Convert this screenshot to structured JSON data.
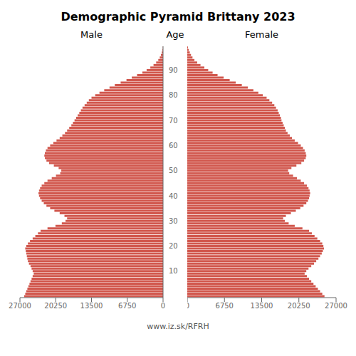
{
  "chart_data": {
    "type": "bar",
    "orientation": "horizontal",
    "title": "Demographic Pyramid Brittany 2023",
    "ylabel": "Age",
    "annotations": [
      "www.iz.sk/RFRH"
    ],
    "color": "#d1574d",
    "grid": false,
    "categories": [
      null,
      null,
      null,
      null,
      null,
      null,
      null,
      null,
      null,
      null,
      "10",
      null,
      null,
      null,
      null,
      null,
      null,
      null,
      null,
      null,
      "20",
      null,
      null,
      null,
      null,
      null,
      null,
      null,
      null,
      null,
      "30",
      null,
      null,
      null,
      null,
      null,
      null,
      null,
      null,
      null,
      "40",
      null,
      null,
      null,
      null,
      null,
      null,
      null,
      null,
      null,
      "50",
      null,
      null,
      null,
      null,
      null,
      null,
      null,
      null,
      null,
      "60",
      null,
      null,
      null,
      null,
      null,
      null,
      null,
      null,
      null,
      "70",
      null,
      null,
      null,
      null,
      null,
      null,
      null,
      null,
      null,
      "80",
      null,
      null,
      null,
      null,
      null,
      null,
      null,
      null,
      null,
      "90",
      null,
      null,
      null,
      null,
      null,
      null,
      null,
      null,
      null
    ],
    "xlim": [
      0,
      27000
    ],
    "xticks": [
      0,
      6750,
      13500,
      20250,
      27000
    ],
    "series": [
      {
        "name": "Male",
        "values": [
          26200,
          26000,
          25800,
          25600,
          25400,
          25200,
          25000,
          24800,
          24600,
          24400,
          24600,
          24800,
          25000,
          25300,
          25500,
          25600,
          25700,
          25800,
          25900,
          26000,
          25800,
          25500,
          25100,
          24600,
          24100,
          23600,
          23100,
          21800,
          20300,
          19100,
          18400,
          18100,
          18600,
          19500,
          20500,
          21300,
          22000,
          22500,
          22900,
          23200,
          23400,
          23500,
          23400,
          23200,
          22900,
          22400,
          21800,
          21000,
          20200,
          19400,
          19200,
          19700,
          20600,
          21500,
          22000,
          22300,
          22400,
          22300,
          22100,
          21800,
          21300,
          20700,
          20100,
          19500,
          19000,
          18500,
          18100,
          17700,
          17300,
          17000,
          16700,
          16400,
          16100,
          15800,
          15500,
          15200,
          14800,
          14400,
          14000,
          13500,
          12800,
          12000,
          11100,
          10100,
          9100,
          8000,
          6900,
          5900,
          4900,
          3900,
          3100,
          2400,
          1800,
          1300,
          900,
          620,
          400,
          230,
          110,
          40
        ]
      },
      {
        "name": "Female",
        "values": [
          24900,
          24500,
          24100,
          23700,
          23300,
          22900,
          22500,
          22100,
          21700,
          21300,
          21600,
          22000,
          22500,
          23000,
          23400,
          23800,
          24100,
          24400,
          24600,
          24800,
          24700,
          24500,
          24100,
          23600,
          23100,
          22600,
          22100,
          20900,
          19500,
          18400,
          17700,
          17400,
          17900,
          18800,
          19700,
          20500,
          21100,
          21600,
          21900,
          22100,
          22200,
          22300,
          22200,
          22000,
          21700,
          21200,
          20600,
          19900,
          19200,
          18500,
          18300,
          18900,
          19800,
          20700,
          21200,
          21500,
          21600,
          21500,
          21300,
          21000,
          20600,
          20100,
          19500,
          19000,
          18600,
          18200,
          17900,
          17700,
          17500,
          17300,
          17100,
          17000,
          16800,
          16600,
          16400,
          16100,
          15800,
          15400,
          14900,
          14400,
          13700,
          12900,
          12000,
          11000,
          9900,
          8800,
          7700,
          6600,
          5500,
          4600,
          3800,
          3100,
          2400,
          1800,
          1300,
          950,
          680,
          460,
          280,
          130
        ]
      }
    ]
  }
}
